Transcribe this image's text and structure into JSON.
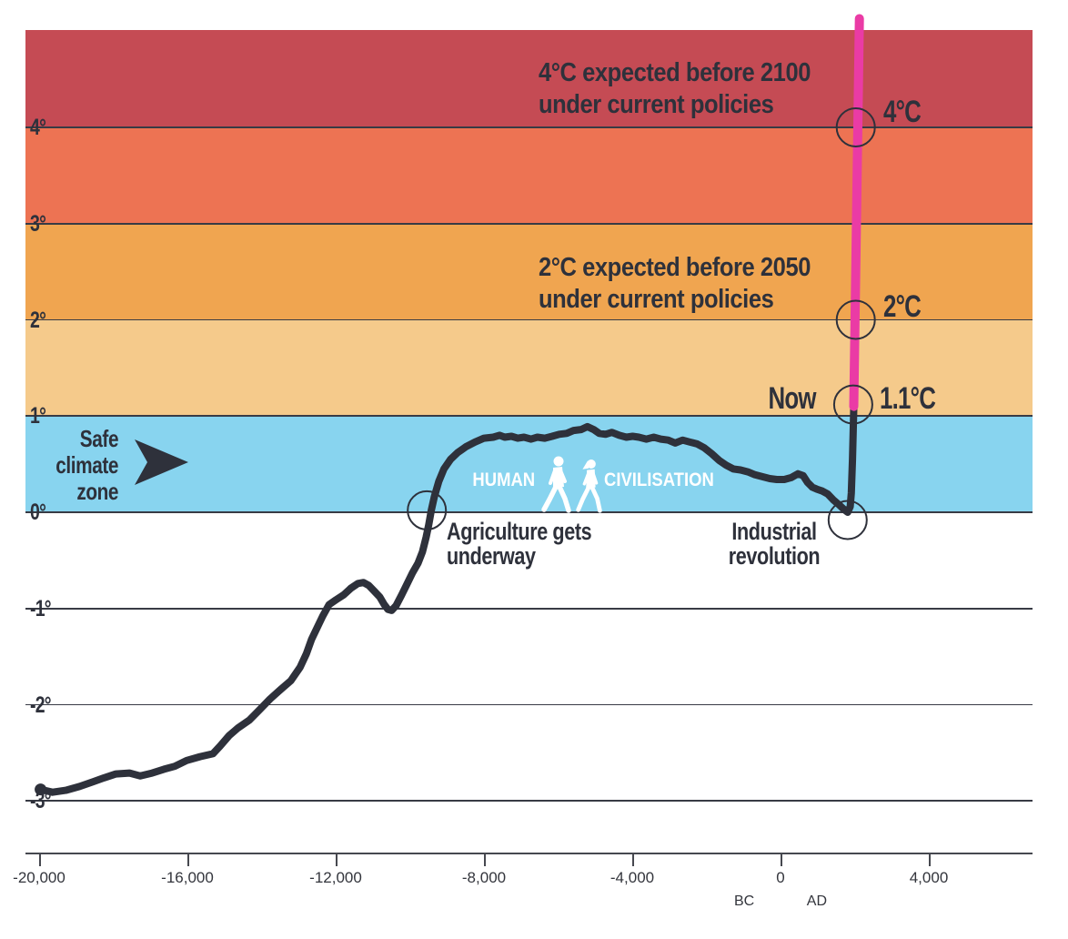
{
  "colors": {
    "line": "#2e313b",
    "projection_pink": "#ea3ba5",
    "text_dark": "#2e313b",
    "text_white": "#ffffff",
    "axis": "#46484f",
    "band_safe": "#88d4ef",
    "band_1_2": "#f5ca8b",
    "band_2_3": "#f0a550",
    "band_3_4": "#ed7353",
    "band_4_plus": "#c54b54"
  },
  "chart_data": {
    "type": "line",
    "y_axis": {
      "unit": "°C",
      "range": [
        -3.5,
        5.1
      ],
      "ticks": [
        {
          "temp": 4,
          "label": "4°"
        },
        {
          "temp": 3,
          "label": "3°"
        },
        {
          "temp": 2,
          "label": "2°"
        },
        {
          "temp": 1,
          "label": "1°"
        },
        {
          "temp": 0,
          "label": "0°"
        },
        {
          "temp": -1,
          "label": "-1°"
        },
        {
          "temp": -2,
          "label": "-2°"
        },
        {
          "temp": -3,
          "label": "-3°"
        }
      ]
    },
    "x_axis": {
      "unit": "year",
      "range": [
        -20350,
        6800
      ],
      "ticks": [
        {
          "year": -20000,
          "label": "-20,000"
        },
        {
          "year": -16000,
          "label": "-16,000"
        },
        {
          "year": -12000,
          "label": "-12,000"
        },
        {
          "year": -8000,
          "label": "-8,000"
        },
        {
          "year": -4000,
          "label": "-4,000"
        },
        {
          "year": 0,
          "label": "0"
        },
        {
          "year": 4000,
          "label": "4,000"
        }
      ],
      "era": [
        {
          "label": "BC",
          "year": -980
        },
        {
          "label": "AD",
          "year": 980
        }
      ]
    },
    "bands": [
      {
        "name": "safe-climate-zone",
        "from": 0,
        "to": 1,
        "color": "#88d4ef"
      },
      {
        "name": "warming-1-2",
        "from": 1,
        "to": 2,
        "color": "#f5ca8b"
      },
      {
        "name": "warming-2-3",
        "from": 2,
        "to": 3,
        "color": "#f0a550"
      },
      {
        "name": "warming-3-4",
        "from": 3,
        "to": 4,
        "color": "#ed7353"
      },
      {
        "name": "warming-4-plus",
        "from": 4,
        "to": 5.01,
        "color": "#c54b54"
      }
    ],
    "series": {
      "name": "global-temperature-history",
      "color": "#2e313b",
      "points": [
        [
          -19960,
          -2.88
        ],
        [
          -19640,
          -2.91
        ],
        [
          -19280,
          -2.89
        ],
        [
          -18910,
          -2.85
        ],
        [
          -18540,
          -2.8
        ],
        [
          -18250,
          -2.76
        ],
        [
          -17930,
          -2.72
        ],
        [
          -17560,
          -2.71
        ],
        [
          -17270,
          -2.74
        ],
        [
          -16950,
          -2.71
        ],
        [
          -16630,
          -2.67
        ],
        [
          -16340,
          -2.64
        ],
        [
          -16020,
          -2.58
        ],
        [
          -15660,
          -2.54
        ],
        [
          -15310,
          -2.51
        ],
        [
          -15120,
          -2.43
        ],
        [
          -14870,
          -2.32
        ],
        [
          -14630,
          -2.24
        ],
        [
          -14330,
          -2.16
        ],
        [
          -14070,
          -2.06
        ],
        [
          -13770,
          -1.94
        ],
        [
          -13480,
          -1.84
        ],
        [
          -13210,
          -1.75
        ],
        [
          -12960,
          -1.61
        ],
        [
          -12790,
          -1.47
        ],
        [
          -12650,
          -1.32
        ],
        [
          -12500,
          -1.2
        ],
        [
          -12350,
          -1.08
        ],
        [
          -12180,
          -0.96
        ],
        [
          -11990,
          -0.91
        ],
        [
          -11790,
          -0.86
        ],
        [
          -11590,
          -0.79
        ],
        [
          -11400,
          -0.74
        ],
        [
          -11250,
          -0.73
        ],
        [
          -11110,
          -0.76
        ],
        [
          -10960,
          -0.82
        ],
        [
          -10810,
          -0.88
        ],
        [
          -10690,
          -0.96
        ],
        [
          -10590,
          -1.01
        ],
        [
          -10490,
          -1.02
        ],
        [
          -10370,
          -0.97
        ],
        [
          -10220,
          -0.86
        ],
        [
          -10080,
          -0.75
        ],
        [
          -9930,
          -0.63
        ],
        [
          -9780,
          -0.53
        ],
        [
          -9660,
          -0.41
        ],
        [
          -9560,
          -0.26
        ],
        [
          -9490,
          -0.13
        ],
        [
          -9420,
          0.02
        ],
        [
          -9340,
          0.16
        ],
        [
          -9220,
          0.32
        ],
        [
          -9080,
          0.45
        ],
        [
          -8900,
          0.55
        ],
        [
          -8710,
          0.62
        ],
        [
          -8490,
          0.68
        ],
        [
          -8240,
          0.73
        ],
        [
          -8000,
          0.77
        ],
        [
          -7750,
          0.78
        ],
        [
          -7580,
          0.8
        ],
        [
          -7440,
          0.78
        ],
        [
          -7260,
          0.79
        ],
        [
          -7090,
          0.77
        ],
        [
          -6920,
          0.78
        ],
        [
          -6730,
          0.76
        ],
        [
          -6560,
          0.78
        ],
        [
          -6360,
          0.77
        ],
        [
          -6160,
          0.79
        ],
        [
          -5970,
          0.81
        ],
        [
          -5770,
          0.82
        ],
        [
          -5580,
          0.85
        ],
        [
          -5380,
          0.86
        ],
        [
          -5210,
          0.89
        ],
        [
          -5040,
          0.86
        ],
        [
          -4890,
          0.82
        ],
        [
          -4720,
          0.81
        ],
        [
          -4550,
          0.83
        ],
        [
          -4350,
          0.8
        ],
        [
          -4160,
          0.78
        ],
        [
          -3990,
          0.79
        ],
        [
          -3820,
          0.78
        ],
        [
          -3620,
          0.76
        ],
        [
          -3420,
          0.78
        ],
        [
          -3230,
          0.76
        ],
        [
          -3030,
          0.75
        ],
        [
          -2840,
          0.72
        ],
        [
          -2640,
          0.75
        ],
        [
          -2450,
          0.73
        ],
        [
          -2250,
          0.71
        ],
        [
          -2060,
          0.67
        ],
        [
          -1860,
          0.61
        ],
        [
          -1660,
          0.54
        ],
        [
          -1470,
          0.49
        ],
        [
          -1270,
          0.45
        ],
        [
          -1080,
          0.44
        ],
        [
          -880,
          0.42
        ],
        [
          -690,
          0.39
        ],
        [
          -490,
          0.37
        ],
        [
          -290,
          0.35
        ],
        [
          -100,
          0.34
        ],
        [
          100,
          0.34
        ],
        [
          290,
          0.36
        ],
        [
          470,
          0.4
        ],
        [
          610,
          0.38
        ],
        [
          730,
          0.31
        ],
        [
          860,
          0.26
        ],
        [
          980,
          0.24
        ],
        [
          1130,
          0.22
        ],
        [
          1270,
          0.19
        ],
        [
          1420,
          0.13
        ],
        [
          1570,
          0.08
        ],
        [
          1710,
          0.03
        ],
        [
          1810,
          0.0
        ],
        [
          1880,
          0.06
        ],
        [
          1910,
          0.2
        ],
        [
          1940,
          0.55
        ],
        [
          1975,
          1.08
        ]
      ]
    },
    "projection": {
      "name": "current-policies-projection",
      "color": "#ea3ba5",
      "points": [
        [
          1975,
          1.1
        ],
        [
          2128,
          5.13
        ]
      ]
    },
    "markers": [
      {
        "id": "agriculture",
        "year": -9540,
        "temp": 0.02
      },
      {
        "id": "industrial-revolution",
        "year": 1810,
        "temp": -0.08
      },
      {
        "id": "now",
        "year": 1960,
        "temp": 1.12
      },
      {
        "id": "two-degrees",
        "year": 2030,
        "temp": 2.0
      },
      {
        "id": "four-degrees",
        "year": 2030,
        "temp": 4.0
      }
    ]
  },
  "annotations": {
    "proj4_line1": "4°C expected before 2100",
    "proj4_line2": "under current policies",
    "proj2_line1": "2°C expected before 2050",
    "proj2_line2": "under current policies",
    "deg4": "4°C",
    "deg2": "2°C",
    "now": "Now",
    "current_temp": "1.1°C",
    "safe1": "Safe",
    "safe2": "climate",
    "safe3": "zone",
    "human": "HUMAN",
    "civilisation": "CIVILISATION",
    "agri1": "Agriculture gets",
    "agri2": "underway",
    "ind1": "Industrial",
    "ind2": "revolution"
  }
}
